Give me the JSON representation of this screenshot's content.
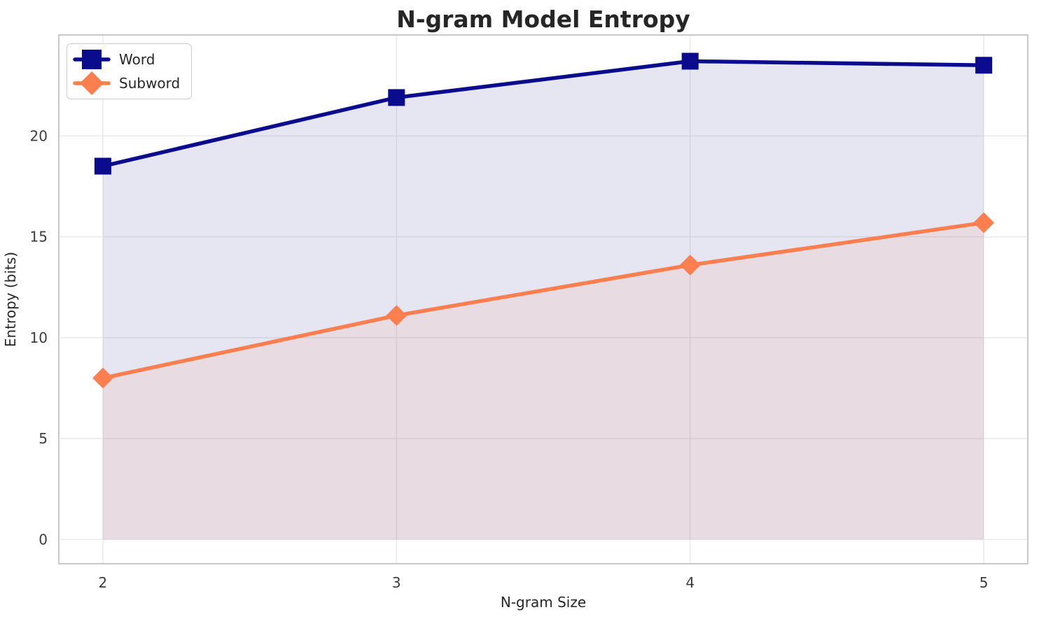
{
  "chart_data": {
    "type": "line",
    "title": "N-gram Model Entropy",
    "xlabel": "N-gram Size",
    "ylabel": "Entropy (bits)",
    "x": [
      2,
      3,
      4,
      5
    ],
    "series": [
      {
        "name": "Word",
        "values": [
          18.5,
          21.9,
          23.7,
          23.5
        ],
        "color": "#0b0b8e",
        "marker": "square",
        "fill_to_zero": true,
        "fill_alpha": 0.1
      },
      {
        "name": "Subword",
        "values": [
          8.0,
          11.1,
          13.6,
          15.7
        ],
        "color": "#fd7f50",
        "marker": "diamond",
        "fill_to_zero": true,
        "fill_alpha": 0.1
      }
    ],
    "xticks": [
      "2",
      "3",
      "4",
      "5"
    ],
    "xtick_values": [
      2,
      3,
      4,
      5
    ],
    "yticks": [
      "0",
      "5",
      "10",
      "15",
      "20"
    ],
    "ytick_values": [
      0,
      5,
      10,
      15,
      20
    ],
    "xlim": [
      1.85,
      5.15
    ],
    "ylim": [
      -1.2,
      25.0
    ],
    "grid": true,
    "legend": {
      "position": "upper-left",
      "entries": [
        "Word",
        "Subword"
      ]
    }
  },
  "colors": {
    "grid": "#ebebeb",
    "spine": "#c9c9c9",
    "background": "#ffffff",
    "title_text": "#262626",
    "tick_text": "#3c3c3c"
  }
}
